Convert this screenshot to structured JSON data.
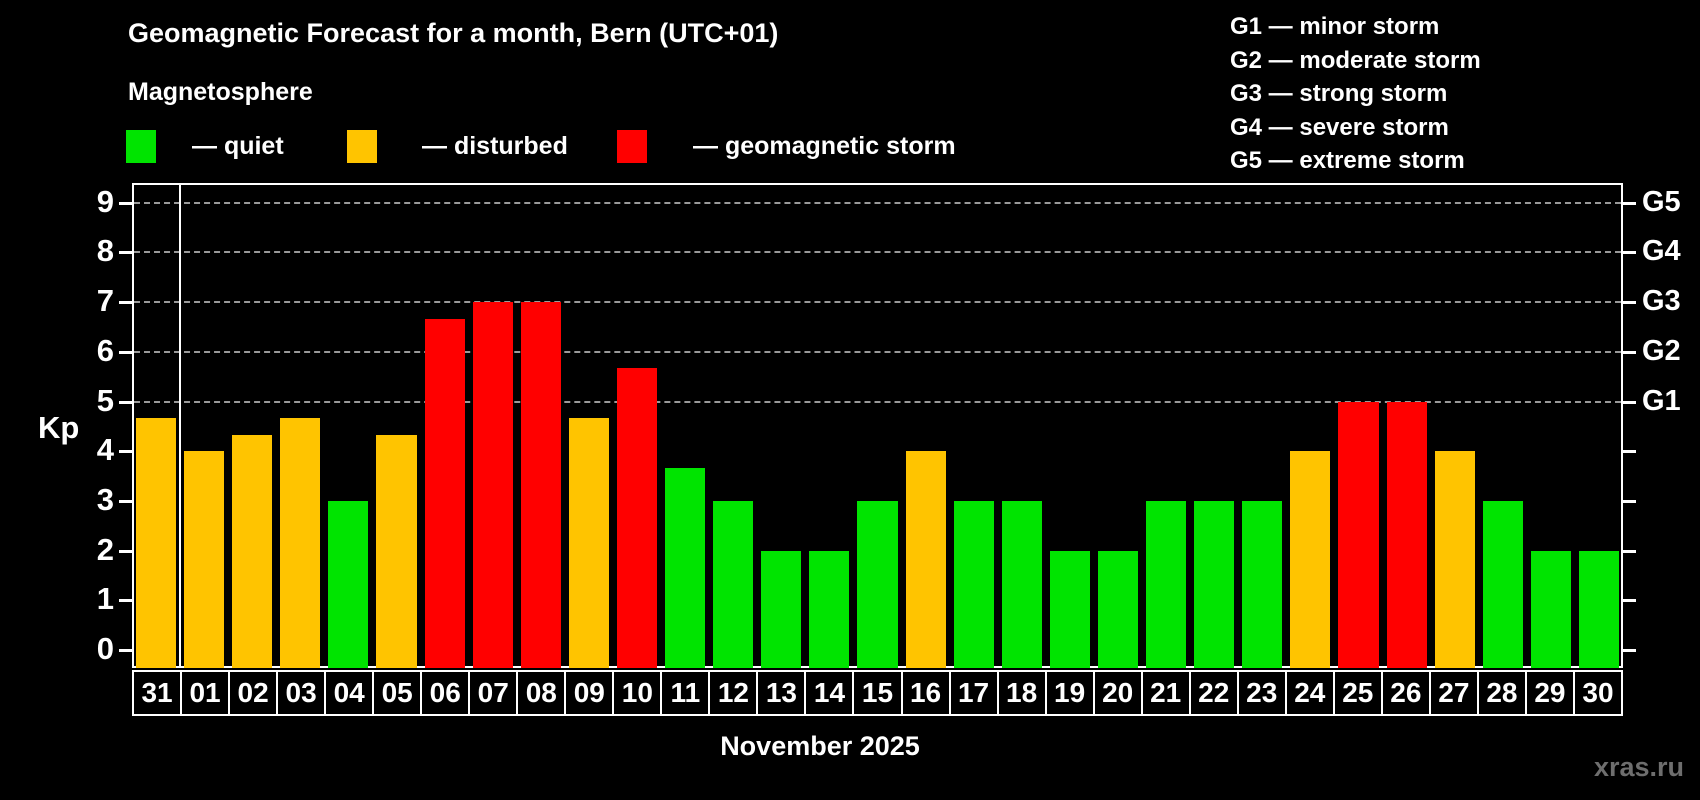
{
  "header": {
    "title": "Geomagnetic Forecast for a month, Bern (UTC+01)",
    "subtitle": "Magnetosphere"
  },
  "legend": {
    "quiet_label": "— quiet",
    "disturbed_label": "— disturbed",
    "storm_label": "— geomagnetic storm"
  },
  "storm_scale_legend": {
    "line1": "G1 — minor storm",
    "line2": "G2 — moderate storm",
    "line3": "G3 — strong storm",
    "line4": "G4 — severe storm",
    "line5": "G5 — extreme storm"
  },
  "axes": {
    "y_label": "Kp",
    "y_ticks": [
      0,
      1,
      2,
      3,
      4,
      5,
      6,
      7,
      8,
      9
    ],
    "right_labels": [
      {
        "label": "G1",
        "kp": 5
      },
      {
        "label": "G2",
        "kp": 6
      },
      {
        "label": "G3",
        "kp": 7
      },
      {
        "label": "G4",
        "kp": 8
      },
      {
        "label": "G5",
        "kp": 9
      }
    ],
    "x_label": "November 2025"
  },
  "watermark": "xras.ru",
  "colors": {
    "quiet": "#00e400",
    "disturbed": "#ffc400",
    "storm": "#ff0000",
    "grid": "#9a9a9a",
    "axis": "#ffffff",
    "background": "#000000",
    "watermark": "#6e6e6e"
  },
  "chart_data": {
    "type": "bar",
    "title": "Geomagnetic Forecast for a month, Bern (UTC+01)",
    "subtitle": "Magnetosphere",
    "xlabel": "November 2025",
    "ylabel": "Kp",
    "ylim": [
      0,
      9
    ],
    "grid": "dashed horizontal at Kp 5-9 (G1-G5)",
    "grid_levels_kp": [
      5,
      6,
      7,
      8,
      9
    ],
    "month_boundary_after_index": 0,
    "categories": [
      "31",
      "01",
      "02",
      "03",
      "04",
      "05",
      "06",
      "07",
      "08",
      "09",
      "10",
      "11",
      "12",
      "13",
      "14",
      "15",
      "16",
      "17",
      "18",
      "19",
      "20",
      "21",
      "22",
      "23",
      "24",
      "25",
      "26",
      "27",
      "28",
      "29",
      "30"
    ],
    "values": [
      4.67,
      4,
      4.33,
      4.67,
      3,
      4.33,
      6.67,
      7,
      7,
      4.67,
      5.67,
      3.67,
      3,
      2,
      2,
      3,
      4,
      3,
      3,
      2,
      2,
      3,
      3,
      3,
      4,
      5,
      5,
      4,
      3,
      2,
      2
    ],
    "levels": [
      "disturbed",
      "disturbed",
      "disturbed",
      "disturbed",
      "quiet",
      "disturbed",
      "storm",
      "storm",
      "storm",
      "disturbed",
      "storm",
      "quiet",
      "quiet",
      "quiet",
      "quiet",
      "quiet",
      "disturbed",
      "quiet",
      "quiet",
      "quiet",
      "quiet",
      "quiet",
      "quiet",
      "quiet",
      "disturbed",
      "storm",
      "storm",
      "disturbed",
      "quiet",
      "quiet",
      "quiet"
    ]
  }
}
